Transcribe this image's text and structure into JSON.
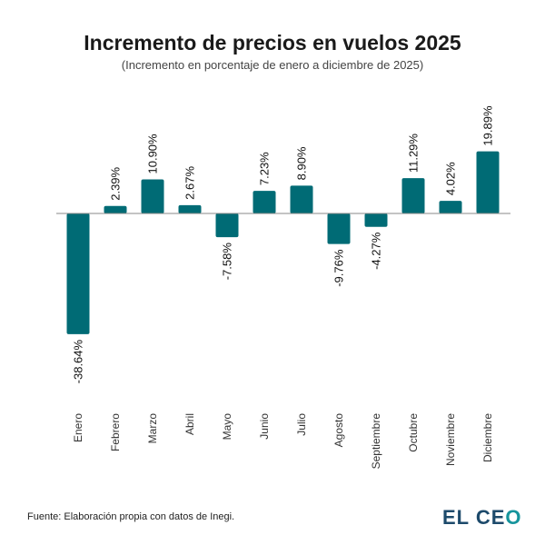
{
  "chart_data": {
    "type": "bar",
    "title": "Incremento de precios en vuelos 2025",
    "subtitle": "(Incremento en porcentaje de enero a diciembre de 2025)",
    "categories": [
      "Enero",
      "Febrero",
      "Marzo",
      "Abril",
      "Mayo",
      "Junio",
      "Julio",
      "Agosto",
      "Septiembre",
      "Octubre",
      "Noviembre",
      "Diciembre"
    ],
    "values": [
      -38.64,
      2.39,
      10.9,
      2.67,
      -7.58,
      7.23,
      8.9,
      -9.76,
      -4.27,
      11.29,
      4.02,
      19.89
    ],
    "data_labels": [
      "-38.64%",
      "2.39%",
      "10.90%",
      "2.67%",
      "-7.58%",
      "7.23%",
      "8.90%",
      "-9.76%",
      "-4.27%",
      "11.29%",
      "4.02%",
      "19.89%"
    ],
    "bar_color": "#006b75",
    "grid": false,
    "ylim": [
      -38.64,
      19.89
    ]
  },
  "footer": {
    "source": "Fuente: Elaboración propia con datos de Inegi.",
    "logo_text_main": "EL CE",
    "logo_text_accent": "O"
  }
}
